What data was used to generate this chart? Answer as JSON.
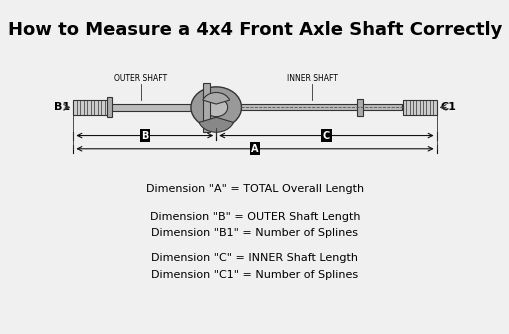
{
  "title": "How to Measure a 4x4 Front Axle Shaft Correctly",
  "title_fontsize": 13,
  "bg_color": "#f0f0f0",
  "text_color": "#000000",
  "dim_a_text": "Dimension \"A\" = TOTAL Overall Length",
  "dim_b_text": "Dimension \"B\" = OUTER Shaft Length",
  "dim_b1_text": "Dimension \"B1\" = Number of Splines",
  "dim_c_text": "Dimension \"C\" = INNER Shaft Length",
  "dim_c1_text": "Dimension \"C1\" = Number of Splines",
  "outer_shaft_label": "OUTER SHAFT",
  "inner_shaft_label": "INNER SHAFT",
  "b1_label": "B1",
  "c1_label": "C1",
  "label_a": "A",
  "label_b": "B",
  "label_c": "C"
}
